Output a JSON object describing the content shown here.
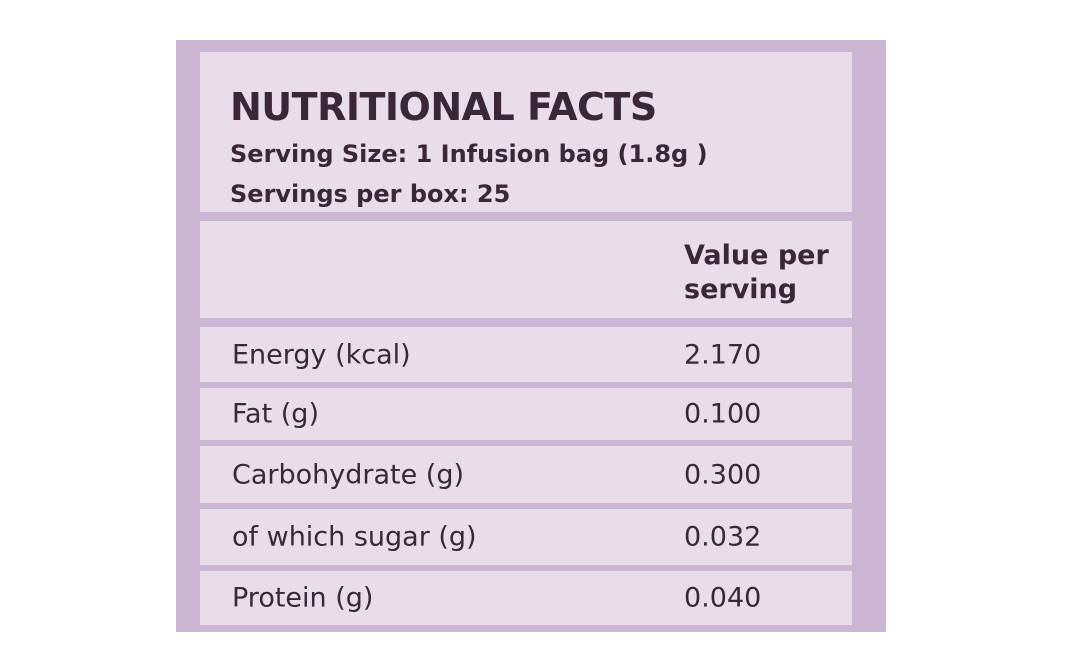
{
  "label": {
    "title": "NUTRITIONAL FACTS",
    "serving_size": "Serving Size: 1 Infusion bag (1.8g )",
    "servings_per_box": "Servings per box: 25",
    "column_header_line1": "Value per",
    "column_header_line2": "serving",
    "rows": [
      {
        "name": "Energy (kcal)",
        "value": "2.170"
      },
      {
        "name": "Fat (g)",
        "value": "0.100"
      },
      {
        "name": "Carbohydrate (g)",
        "value": "0.300"
      },
      {
        "name": "of which sugar (g)",
        "value": "0.032"
      },
      {
        "name": "Protein (g)",
        "value": "0.040"
      }
    ]
  },
  "colors": {
    "panel_border": "#cbb7d3",
    "cell_background": "#e8dde8",
    "text": "#3a2838"
  }
}
